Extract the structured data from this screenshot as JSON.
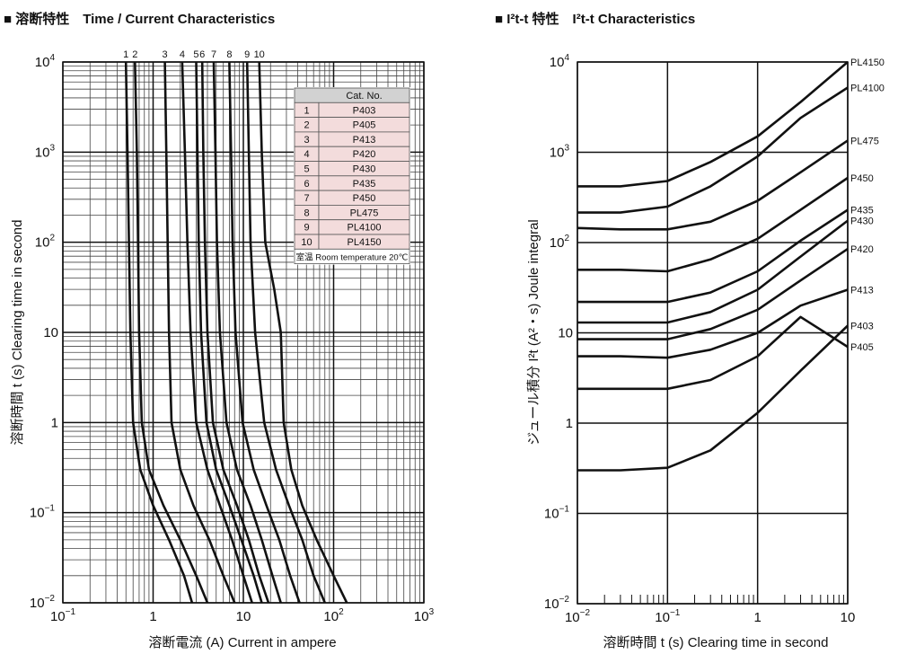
{
  "chart_data": [
    {
      "type": "line",
      "title": "■ 溶断特性　Time / Current Characteristics",
      "xlabel": "溶断電流 (A)  Current in ampere",
      "ylabel": "溶断時間 t (s)  Clearing time in second",
      "x_scale": "log",
      "y_scale": "log",
      "xlim": [
        0.1,
        1000
      ],
      "ylim": [
        0.01,
        10000
      ],
      "x_ticks": [
        {
          "v": 0.1,
          "b": "10",
          "e": "−1"
        },
        {
          "v": 1,
          "b": "1",
          "e": ""
        },
        {
          "v": 10,
          "b": "10",
          "e": ""
        },
        {
          "v": 100,
          "b": "10",
          "e": "2"
        },
        {
          "v": 1000,
          "b": "10",
          "e": "3"
        }
      ],
      "y_ticks": [
        {
          "v": 0.01,
          "b": "10",
          "e": "−2"
        },
        {
          "v": 0.1,
          "b": "10",
          "e": "−1"
        },
        {
          "v": 1,
          "b": "1",
          "e": ""
        },
        {
          "v": 10,
          "b": "10",
          "e": ""
        },
        {
          "v": 100,
          "b": "10",
          "e": "2"
        },
        {
          "v": 1000,
          "b": "10",
          "e": "3"
        },
        {
          "v": 10000,
          "b": "10",
          "e": "4"
        }
      ],
      "table": {
        "header": [
          "",
          "Cat. No."
        ],
        "rows": [
          [
            "1",
            "P403"
          ],
          [
            "2",
            "P405"
          ],
          [
            "3",
            "P413"
          ],
          [
            "4",
            "P420"
          ],
          [
            "5",
            "P430"
          ],
          [
            "6",
            "P435"
          ],
          [
            "7",
            "P450"
          ],
          [
            "8",
            "PL475"
          ],
          [
            "9",
            "PL4100"
          ],
          [
            "10",
            "PL4150"
          ]
        ],
        "note": "室温 Room temperature 20℃"
      },
      "series": [
        {
          "name": "1",
          "points": [
            [
              0.5,
              10000
            ],
            [
              0.52,
              1000
            ],
            [
              0.54,
              100
            ],
            [
              0.56,
              10
            ],
            [
              0.6,
              1
            ],
            [
              0.72,
              0.3
            ],
            [
              1.0,
              0.12
            ],
            [
              1.5,
              0.05
            ],
            [
              2.2,
              0.02
            ],
            [
              2.7,
              0.01
            ]
          ]
        },
        {
          "name": "2",
          "points": [
            [
              0.63,
              10000
            ],
            [
              0.66,
              1000
            ],
            [
              0.68,
              100
            ],
            [
              0.7,
              10
            ],
            [
              0.75,
              1
            ],
            [
              0.9,
              0.3
            ],
            [
              1.3,
              0.12
            ],
            [
              2.0,
              0.05
            ],
            [
              3.0,
              0.02
            ],
            [
              4.0,
              0.01
            ]
          ]
        },
        {
          "name": "3",
          "points": [
            [
              1.35,
              10000
            ],
            [
              1.4,
              1000
            ],
            [
              1.45,
              100
            ],
            [
              1.5,
              10
            ],
            [
              1.6,
              1
            ],
            [
              2.0,
              0.3
            ],
            [
              2.8,
              0.12
            ],
            [
              4.2,
              0.05
            ],
            [
              6.0,
              0.02
            ],
            [
              8.0,
              0.01
            ]
          ]
        },
        {
          "name": "4",
          "points": [
            [
              2.1,
              10000
            ],
            [
              2.25,
              1000
            ],
            [
              2.4,
              100
            ],
            [
              2.6,
              10
            ],
            [
              3.0,
              1
            ],
            [
              4.0,
              0.3
            ],
            [
              5.5,
              0.12
            ],
            [
              7.5,
              0.05
            ],
            [
              10.0,
              0.02
            ],
            [
              12.5,
              0.01
            ]
          ]
        },
        {
          "name": "5",
          "points": [
            [
              3.0,
              10000
            ],
            [
              3.1,
              1000
            ],
            [
              3.2,
              100
            ],
            [
              3.4,
              10
            ],
            [
              3.9,
              1
            ],
            [
              5.0,
              0.3
            ],
            [
              7.0,
              0.12
            ],
            [
              9.5,
              0.05
            ],
            [
              13.0,
              0.02
            ],
            [
              16.0,
              0.01
            ]
          ]
        },
        {
          "name": "6",
          "points": [
            [
              3.5,
              10000
            ],
            [
              3.6,
              1000
            ],
            [
              3.75,
              100
            ],
            [
              4.0,
              10
            ],
            [
              4.6,
              1
            ],
            [
              6.0,
              0.3
            ],
            [
              8.5,
              0.12
            ],
            [
              11.5,
              0.05
            ],
            [
              15.0,
              0.02
            ],
            [
              19.0,
              0.01
            ]
          ]
        },
        {
          "name": "7",
          "points": [
            [
              4.7,
              10000
            ],
            [
              4.9,
              1000
            ],
            [
              5.1,
              100
            ],
            [
              5.5,
              10
            ],
            [
              6.5,
              1
            ],
            [
              8.5,
              0.3
            ],
            [
              12.0,
              0.12
            ],
            [
              16.0,
              0.05
            ],
            [
              21.0,
              0.02
            ],
            [
              26.0,
              0.01
            ]
          ]
        },
        {
          "name": "8",
          "points": [
            [
              7.0,
              10000
            ],
            [
              7.3,
              1000
            ],
            [
              7.6,
              100
            ],
            [
              8.2,
              10
            ],
            [
              9.8,
              1
            ],
            [
              13.0,
              0.3
            ],
            [
              18.0,
              0.12
            ],
            [
              25.0,
              0.05
            ],
            [
              33.0,
              0.02
            ],
            [
              42.0,
              0.01
            ]
          ]
        },
        {
          "name": "9",
          "points": [
            [
              11.0,
              10000
            ],
            [
              11.5,
              1000
            ],
            [
              12.0,
              100
            ],
            [
              13.5,
              10
            ],
            [
              17.0,
              1
            ],
            [
              23.0,
              0.3
            ],
            [
              32.0,
              0.12
            ],
            [
              45.0,
              0.05
            ],
            [
              60.0,
              0.02
            ],
            [
              80.0,
              0.01
            ]
          ]
        },
        {
          "name": "10",
          "points": [
            [
              15.0,
              10000
            ],
            [
              16.0,
              1000
            ],
            [
              17.5,
              100
            ],
            [
              22.0,
              30
            ],
            [
              26.0,
              10
            ],
            [
              28.0,
              1
            ],
            [
              34.0,
              0.3
            ],
            [
              45.0,
              0.12
            ],
            [
              65.0,
              0.05
            ],
            [
              100.0,
              0.02
            ],
            [
              140.0,
              0.01
            ]
          ]
        }
      ]
    },
    {
      "type": "line",
      "title": "■ I²t-t 特性　I²t-t Characteristics",
      "xlabel": "溶断時間 t (s)  Clearing time in second",
      "ylabel": "ジュール積分 I²t (A²・s)  Joule integral",
      "x_scale": "log",
      "y_scale": "log",
      "xlim": [
        0.01,
        10
      ],
      "ylim": [
        0.01,
        10000
      ],
      "x_ticks": [
        {
          "v": 0.01,
          "b": "10",
          "e": "−2"
        },
        {
          "v": 0.1,
          "b": "10",
          "e": "−1"
        },
        {
          "v": 1,
          "b": "1",
          "e": ""
        },
        {
          "v": 10,
          "b": "10",
          "e": ""
        }
      ],
      "y_ticks": [
        {
          "v": 0.01,
          "b": "10",
          "e": "−2"
        },
        {
          "v": 0.1,
          "b": "10",
          "e": "−1"
        },
        {
          "v": 1,
          "b": "1",
          "e": ""
        },
        {
          "v": 10,
          "b": "10",
          "e": ""
        },
        {
          "v": 100,
          "b": "10",
          "e": "2"
        },
        {
          "v": 1000,
          "b": "10",
          "e": "3"
        },
        {
          "v": 10000,
          "b": "10",
          "e": "4"
        }
      ],
      "series": [
        {
          "name": "PL4150",
          "points": [
            [
              0.01,
              420
            ],
            [
              0.03,
              420
            ],
            [
              0.1,
              480
            ],
            [
              0.3,
              780
            ],
            [
              1.0,
              1500
            ],
            [
              3.0,
              3600
            ],
            [
              10.0,
              10000
            ]
          ]
        },
        {
          "name": "PL4100",
          "points": [
            [
              0.01,
              215
            ],
            [
              0.03,
              215
            ],
            [
              0.1,
              250
            ],
            [
              0.3,
              420
            ],
            [
              1.0,
              900
            ],
            [
              3.0,
              2400
            ],
            [
              10.0,
              5200
            ]
          ]
        },
        {
          "name": "PL475",
          "points": [
            [
              0.01,
              145
            ],
            [
              0.03,
              140
            ],
            [
              0.1,
              140
            ],
            [
              0.3,
              170
            ],
            [
              1.0,
              290
            ],
            [
              3.0,
              600
            ],
            [
              10.0,
              1350
            ]
          ]
        },
        {
          "name": "P450",
          "points": [
            [
              0.01,
              50
            ],
            [
              0.03,
              50
            ],
            [
              0.1,
              48
            ],
            [
              0.3,
              65
            ],
            [
              1.0,
              110
            ],
            [
              3.0,
              230
            ],
            [
              10.0,
              520
            ]
          ]
        },
        {
          "name": "P435",
          "points": [
            [
              0.01,
              22
            ],
            [
              0.03,
              22
            ],
            [
              0.1,
              22
            ],
            [
              0.3,
              28
            ],
            [
              1.0,
              48
            ],
            [
              3.0,
              105
            ],
            [
              10.0,
              230
            ]
          ]
        },
        {
          "name": "P430",
          "points": [
            [
              0.01,
              13
            ],
            [
              0.03,
              13
            ],
            [
              0.1,
              13
            ],
            [
              0.3,
              17
            ],
            [
              1.0,
              30
            ],
            [
              3.0,
              70
            ],
            [
              10.0,
              175
            ]
          ]
        },
        {
          "name": "P420",
          "points": [
            [
              0.01,
              8.5
            ],
            [
              0.03,
              8.5
            ],
            [
              0.1,
              8.5
            ],
            [
              0.3,
              11
            ],
            [
              1.0,
              18
            ],
            [
              3.0,
              38
            ],
            [
              10.0,
              85
            ]
          ]
        },
        {
          "name": "P413",
          "points": [
            [
              0.01,
              5.5
            ],
            [
              0.03,
              5.5
            ],
            [
              0.1,
              5.3
            ],
            [
              0.3,
              6.5
            ],
            [
              1.0,
              10
            ],
            [
              3.0,
              20
            ],
            [
              10.0,
              30
            ]
          ]
        },
        {
          "name": "P405",
          "points": [
            [
              0.01,
              2.4
            ],
            [
              0.03,
              2.4
            ],
            [
              0.1,
              2.4
            ],
            [
              0.3,
              3.0
            ],
            [
              1.0,
              5.5
            ],
            [
              3.0,
              15
            ],
            [
              10.0,
              7.0
            ]
          ]
        },
        {
          "name": "P403",
          "points": [
            [
              0.01,
              0.3
            ],
            [
              0.03,
              0.3
            ],
            [
              0.1,
              0.32
            ],
            [
              0.3,
              0.5
            ],
            [
              1.0,
              1.3
            ],
            [
              3.0,
              3.8
            ],
            [
              10.0,
              12
            ]
          ]
        }
      ]
    }
  ]
}
